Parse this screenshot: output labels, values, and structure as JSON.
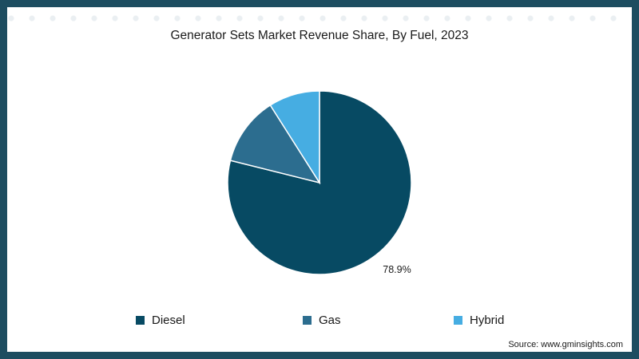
{
  "chart_data": {
    "type": "pie",
    "title": "Generator Sets Market Revenue Share, By Fuel, 2023",
    "categories": [
      "Diesel",
      "Gas",
      "Hybrid"
    ],
    "values": [
      78.9,
      12.1,
      9.0
    ],
    "colors": [
      "#074a63",
      "#2c6d8f",
      "#46ade2"
    ],
    "data_labels": [
      "78.9%"
    ],
    "legend_position": "bottom"
  },
  "source": "Source: www.gminsights.com"
}
